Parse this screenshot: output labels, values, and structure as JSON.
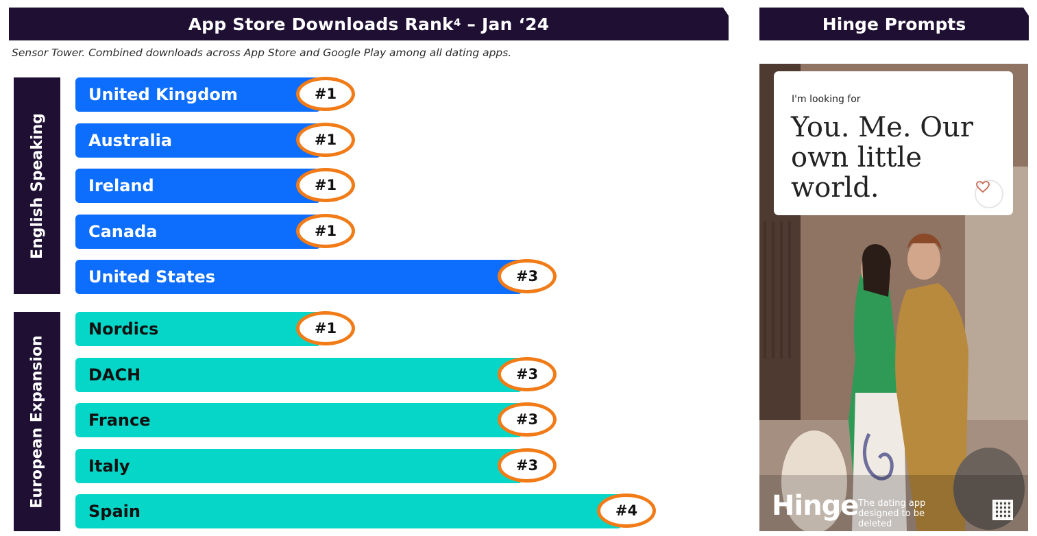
{
  "left_header": {
    "title": "App Store Downloads Rank",
    "superscript": "4",
    "suffix": " – Jan ‘24"
  },
  "right_header": {
    "title": "Hinge Prompts"
  },
  "source_note": "Sensor Tower. Combined downloads across App Store and Google Play among all dating apps.",
  "colors": {
    "header_bg": "#1f0f33",
    "english_bar": "#0d6efd",
    "european_bar": "#06d6c7",
    "badge_ring": "#f17b17"
  },
  "chart_data": {
    "type": "bar",
    "orientation": "horizontal",
    "value_meaning": "download rank",
    "groups": [
      {
        "label": "English Speaking",
        "color": "#0d6efd",
        "text_color": "#ffffff",
        "items": [
          {
            "name": "United Kingdom",
            "rank": 1,
            "label": "#1"
          },
          {
            "name": "Australia",
            "rank": 1,
            "label": "#1"
          },
          {
            "name": "Ireland",
            "rank": 1,
            "label": "#1"
          },
          {
            "name": "Canada",
            "rank": 1,
            "label": "#1"
          },
          {
            "name": "United States",
            "rank": 3,
            "label": "#3"
          }
        ]
      },
      {
        "label": "European Expansion",
        "color": "#06d6c7",
        "text_color": "#111111",
        "items": [
          {
            "name": "Nordics",
            "rank": 1,
            "label": "#1"
          },
          {
            "name": "DACH",
            "rank": 3,
            "label": "#3"
          },
          {
            "name": "France",
            "rank": 3,
            "label": "#3"
          },
          {
            "name": "Italy",
            "rank": 3,
            "label": "#3"
          },
          {
            "name": "Spain",
            "rank": 4,
            "label": "#4"
          }
        ]
      }
    ]
  },
  "prompt_card": {
    "label": "I'm looking for",
    "text": "You. Me. Our own little world.",
    "heart_icon": "heart-icon"
  },
  "ad_footer": {
    "brand": "Hinge",
    "tagline": "The dating app designed to be deleted",
    "qr_icon": "qr-code-icon"
  }
}
